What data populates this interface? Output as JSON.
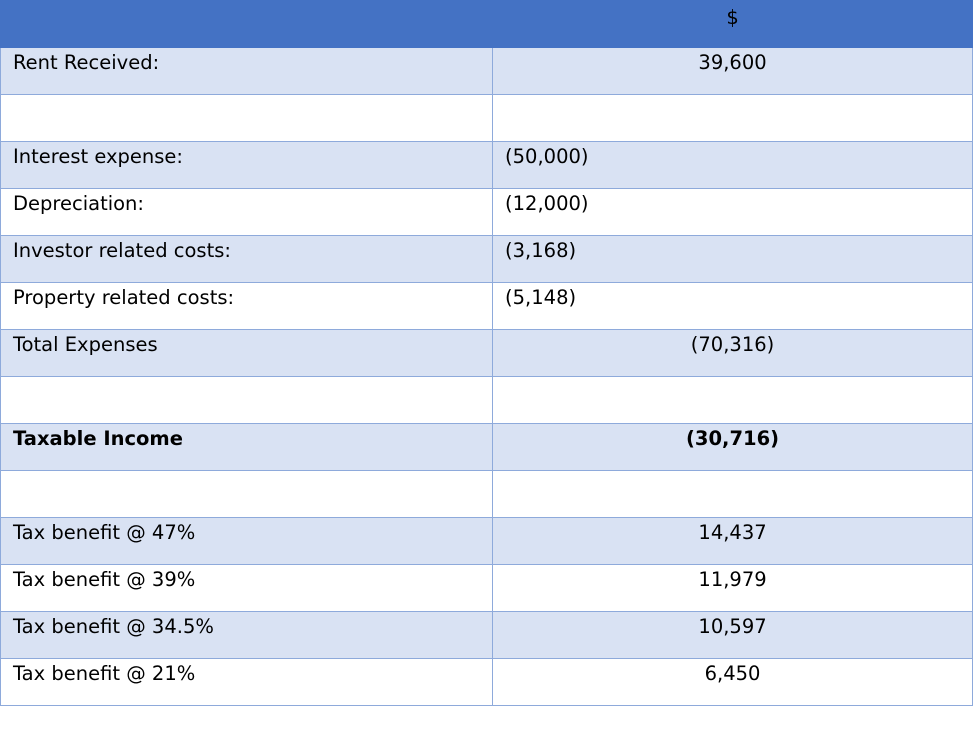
{
  "header": {
    "label": "",
    "currency": "$"
  },
  "rows": [
    {
      "label": "Rent Received:",
      "sub": "",
      "total": "39,600"
    },
    {
      "label": "",
      "sub": "",
      "total": ""
    },
    {
      "label": "Interest expense:",
      "sub": "(50,000)",
      "total": ""
    },
    {
      "label": "Depreciation:",
      "sub": "(12,000)",
      "total": ""
    },
    {
      "label": "Investor related costs:",
      "sub": "(3,168)",
      "total": ""
    },
    {
      "label": "Property related costs:",
      "sub": "(5,148)",
      "total": ""
    },
    {
      "label": "Total Expenses",
      "sub": "",
      "total": "(70,316)"
    },
    {
      "label": "",
      "sub": "",
      "total": ""
    },
    {
      "label": "Taxable Income",
      "sub": "",
      "total": "(30,716)"
    },
    {
      "label": "",
      "sub": "",
      "total": ""
    },
    {
      "label": "Tax benefit @ 47%",
      "sub": "",
      "total": "14,437"
    },
    {
      "label": "Tax benefit @ 39%",
      "sub": "",
      "total": "11,979"
    },
    {
      "label": "Tax benefit @ 34.5%",
      "sub": "",
      "total": "10,597"
    },
    {
      "label": "Tax benefit @ 21%",
      "sub": "",
      "total": "6,450"
    }
  ]
}
